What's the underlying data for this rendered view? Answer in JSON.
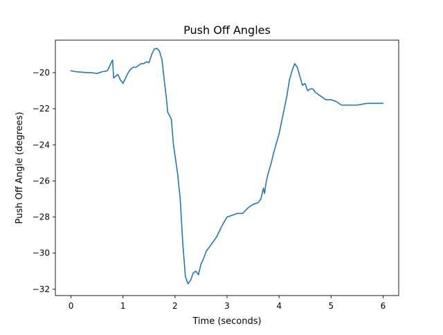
{
  "chart_data": {
    "type": "line",
    "title": "Push Off Angles",
    "xlabel": "Time (seconds)",
    "ylabel": "Push Off Angle (degrees)",
    "xlim": [
      -0.3,
      6.3
    ],
    "ylim": [
      -32.35,
      -18.2
    ],
    "x_ticks": [
      0,
      1,
      2,
      3,
      4,
      5,
      6
    ],
    "y_ticks": [
      -32,
      -30,
      -28,
      -26,
      -24,
      -22,
      -20
    ],
    "grid": false,
    "legend": "none",
    "series": [
      {
        "color": "#1f77b4",
        "x": [
          0.0,
          0.1,
          0.2,
          0.3,
          0.4,
          0.5,
          0.6,
          0.7,
          0.75,
          0.78,
          0.8,
          0.82,
          0.86,
          0.9,
          0.95,
          1.0,
          1.05,
          1.1,
          1.15,
          1.2,
          1.25,
          1.3,
          1.35,
          1.4,
          1.45,
          1.5,
          1.55,
          1.6,
          1.65,
          1.7,
          1.75,
          1.8,
          1.83,
          1.86,
          1.9,
          1.93,
          1.95,
          1.97,
          2.0,
          2.05,
          2.1,
          2.15,
          2.2,
          2.25,
          2.3,
          2.35,
          2.4,
          2.45,
          2.5,
          2.55,
          2.6,
          2.7,
          2.8,
          2.9,
          3.0,
          3.1,
          3.2,
          3.3,
          3.4,
          3.5,
          3.6,
          3.65,
          3.7,
          3.72,
          3.75,
          3.78,
          3.8,
          3.85,
          3.9,
          3.95,
          4.0,
          4.05,
          4.1,
          4.15,
          4.2,
          4.25,
          4.3,
          4.35,
          4.4,
          4.45,
          4.5,
          4.55,
          4.6,
          4.65,
          4.7,
          4.8,
          4.9,
          5.0,
          5.1,
          5.2,
          5.3,
          5.4,
          5.5,
          5.6,
          5.7,
          5.8,
          5.9,
          6.0
        ],
        "y": [
          -19.9,
          -19.95,
          -19.97,
          -20.0,
          -20.0,
          -20.05,
          -19.95,
          -19.9,
          -19.6,
          -19.4,
          -19.3,
          -20.3,
          -20.2,
          -20.1,
          -20.4,
          -20.6,
          -20.3,
          -20.0,
          -19.8,
          -19.7,
          -19.7,
          -19.6,
          -19.5,
          -19.5,
          -19.4,
          -19.45,
          -19.0,
          -18.7,
          -18.65,
          -18.8,
          -19.3,
          -20.6,
          -21.3,
          -22.2,
          -22.4,
          -22.6,
          -23.3,
          -24.0,
          -24.6,
          -25.6,
          -27.0,
          -29.5,
          -31.3,
          -31.7,
          -31.5,
          -31.1,
          -31.0,
          -31.2,
          -30.6,
          -30.3,
          -29.9,
          -29.5,
          -29.1,
          -28.5,
          -28.0,
          -27.9,
          -27.8,
          -27.8,
          -27.5,
          -27.3,
          -27.2,
          -27.0,
          -26.4,
          -26.7,
          -26.1,
          -25.7,
          -25.5,
          -25.0,
          -24.4,
          -23.9,
          -23.4,
          -22.7,
          -22.0,
          -21.3,
          -20.4,
          -19.9,
          -19.5,
          -19.7,
          -20.2,
          -20.7,
          -20.6,
          -21.0,
          -20.9,
          -20.9,
          -21.1,
          -21.3,
          -21.5,
          -21.5,
          -21.6,
          -21.8,
          -21.8,
          -21.8,
          -21.8,
          -21.75,
          -21.7,
          -21.7,
          -21.7,
          -21.7
        ]
      }
    ]
  }
}
